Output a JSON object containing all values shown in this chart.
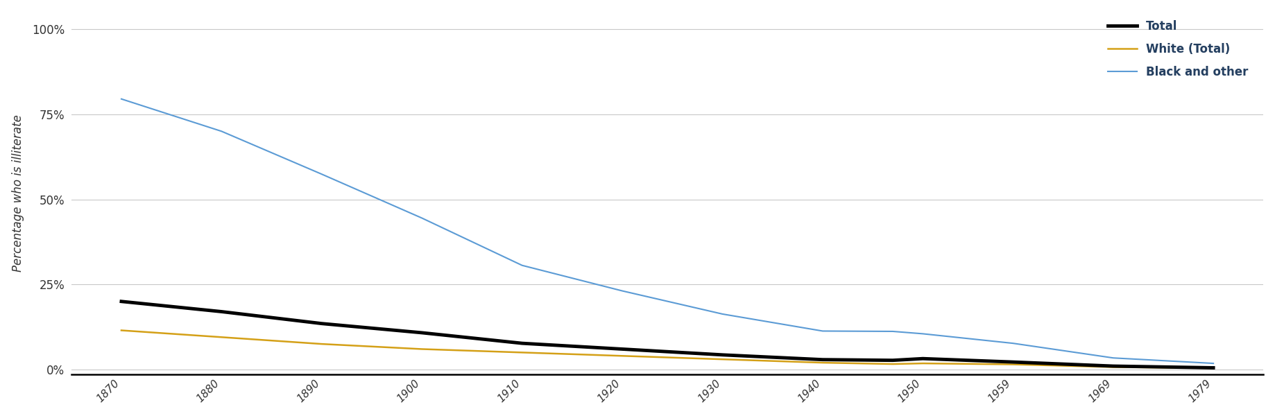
{
  "years": [
    1870,
    1880,
    1890,
    1900,
    1910,
    1920,
    1930,
    1940,
    1947,
    1950,
    1959,
    1969,
    1979
  ],
  "total": [
    0.2,
    0.17,
    0.135,
    0.108,
    0.077,
    0.06,
    0.043,
    0.029,
    0.027,
    0.032,
    0.022,
    0.01,
    0.005
  ],
  "white": [
    0.115,
    0.095,
    0.075,
    0.06,
    0.05,
    0.04,
    0.03,
    0.02,
    0.016,
    0.018,
    0.015,
    0.007,
    0.004
  ],
  "black": [
    0.795,
    0.7,
    0.574,
    0.445,
    0.306,
    0.231,
    0.163,
    0.113,
    0.112,
    0.105,
    0.077,
    0.034,
    0.018
  ],
  "line_colors": {
    "total": "#000000",
    "white": "#d4a017",
    "black": "#5b9bd5"
  },
  "line_widths": {
    "total": 3.5,
    "white": 1.8,
    "black": 1.5
  },
  "legend_labels": {
    "total": "Total",
    "white": "White (Total)",
    "black": "Black and other"
  },
  "legend_text_color": "#243f60",
  "ylabel": "Percentage who is illiterate",
  "yticks": [
    0,
    0.25,
    0.5,
    0.75,
    1.0
  ],
  "yticklabels": [
    "0%",
    "25%",
    "50%",
    "75%",
    "100%"
  ],
  "ylim": [
    -0.015,
    1.05
  ],
  "xlim": [
    1865,
    1984
  ],
  "xticks": [
    1870,
    1880,
    1890,
    1900,
    1910,
    1920,
    1930,
    1940,
    1950,
    1959,
    1969,
    1979
  ],
  "background_color": "#ffffff",
  "grid_color": "#c8c8c8",
  "figsize": [
    18.38,
    6.0
  ],
  "dpi": 100
}
